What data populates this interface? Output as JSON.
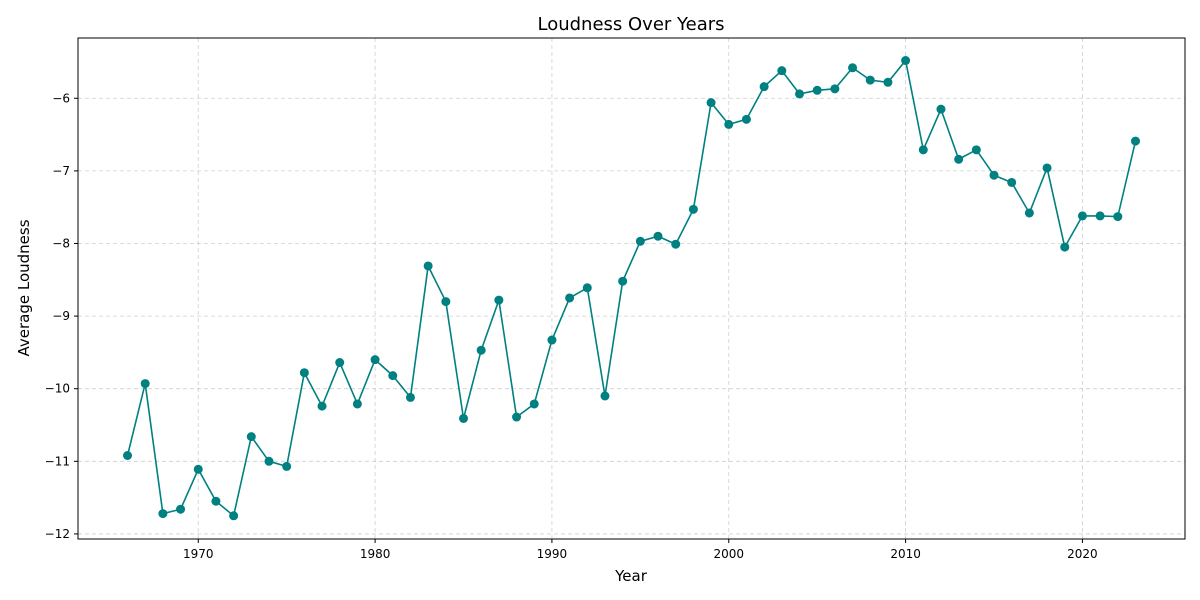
{
  "chart_data": {
    "type": "line",
    "title": "Loudness Over Years",
    "xlabel": "Year",
    "ylabel": "Average Loudness",
    "xlim": [
      1963.2,
      2025.8
    ],
    "ylim": [
      -12.07,
      -5.17
    ],
    "xticks": [
      1970,
      1980,
      1990,
      2000,
      2010,
      2020
    ],
    "yticks": [
      -12,
      -11,
      -10,
      -9,
      -8,
      -7,
      -6
    ],
    "grid": true,
    "line_color": "#008080",
    "series": [
      {
        "x": [
          1966,
          1967,
          1968,
          1969,
          1970,
          1971,
          1972,
          1973,
          1974,
          1975,
          1976,
          1977,
          1978,
          1979,
          1980,
          1981,
          1982,
          1983,
          1984,
          1985,
          1986,
          1987,
          1988,
          1989,
          1990,
          1991,
          1992,
          1993,
          1994,
          1995,
          1996,
          1997,
          1998,
          1999,
          2000,
          2001,
          2002,
          2003,
          2004,
          2005,
          2006,
          2007,
          2008,
          2009,
          2010,
          2011,
          2012,
          2013,
          2014,
          2015,
          2016,
          2017,
          2018,
          2019,
          2020,
          2021,
          2022,
          2023
        ],
        "values": [
          -10.92,
          -9.93,
          -11.72,
          -11.66,
          -11.11,
          -11.55,
          -11.75,
          -10.66,
          -11.0,
          -11.07,
          -9.78,
          -10.24,
          -9.64,
          -10.21,
          -9.6,
          -9.82,
          -10.12,
          -8.31,
          -8.8,
          -10.41,
          -9.47,
          -8.78,
          -10.39,
          -10.21,
          -9.33,
          -8.75,
          -8.61,
          -10.1,
          -8.52,
          -7.97,
          -7.9,
          -8.01,
          -7.53,
          -6.06,
          -6.36,
          -6.29,
          -5.84,
          -5.62,
          -5.94,
          -5.89,
          -5.87,
          -5.58,
          -5.75,
          -5.78,
          -5.48,
          -6.71,
          -6.15,
          -6.84,
          -6.71,
          -7.06,
          -7.16,
          -7.58,
          -6.96,
          -8.05,
          -7.62,
          -7.62,
          -7.63,
          -6.59
        ]
      }
    ]
  }
}
